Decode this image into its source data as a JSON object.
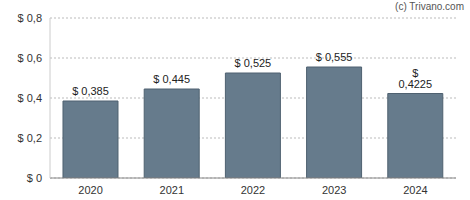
{
  "chart_data": {
    "type": "bar",
    "annotation": "(c) Trivano.com",
    "categories": [
      "2020",
      "2021",
      "2022",
      "2023",
      "2024"
    ],
    "values": [
      0.385,
      0.445,
      0.525,
      0.555,
      0.4225
    ],
    "value_labels": [
      "$ 0,385",
      "$ 0,445",
      "$ 0,525",
      "$ 0,555",
      "$ 0,4225"
    ],
    "data_labels": true,
    "color": "#667b8c",
    "ylim": [
      0,
      0.8
    ],
    "yticks": [
      {
        "value": 0,
        "label": "$ 0"
      },
      {
        "value": 0.2,
        "label": "$ 0,2"
      },
      {
        "value": 0.4,
        "label": "$ 0,4"
      },
      {
        "value": 0.6,
        "label": "$ 0,6"
      },
      {
        "value": 0.8,
        "label": "$ 0,8"
      }
    ],
    "grid": true
  }
}
